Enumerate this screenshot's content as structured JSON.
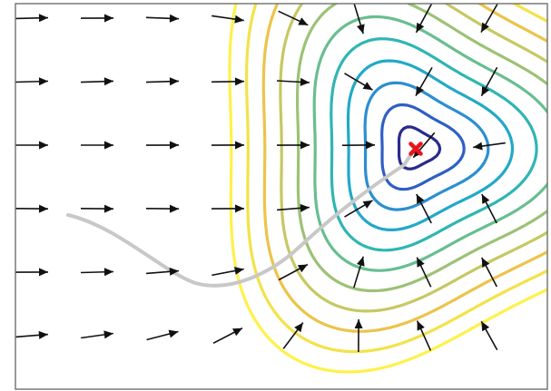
{
  "chart_data": {
    "type": "contour",
    "title": "",
    "xlabel": "",
    "ylabel": "",
    "grid": false,
    "minimum_marker": {
      "shape": "x-mark",
      "color": "#e8141c"
    },
    "path_color": "#c8c8c8",
    "arrow_color": "#111111",
    "colormap": [
      "#2a2a8c",
      "#2f5fc4",
      "#2b8fd0",
      "#22a9c8",
      "#2fb6b3",
      "#68be8f",
      "#9cc276",
      "#c6c863",
      "#ecc44a",
      "#f3e24a",
      "#fff14a"
    ],
    "contour_levels": [
      0.05,
      0.2,
      0.45,
      0.8,
      1.25,
      1.8,
      2.45,
      3.2,
      4.05,
      5.0,
      6.05
    ]
  }
}
